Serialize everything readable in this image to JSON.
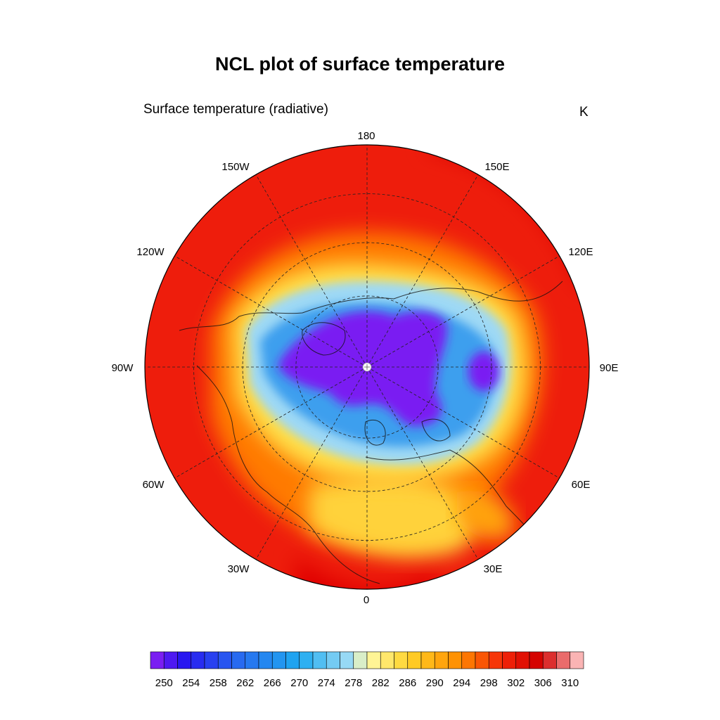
{
  "title": "NCL plot of surface temperature",
  "left_subtitle": "Surface temperature (radiative)",
  "right_subtitle": "K",
  "longitude_labels": {
    "lon_180": "180",
    "lon_150e": "150E",
    "lon_120e": "120E",
    "lon_90e": "90E",
    "lon_60e": "60E",
    "lon_30e": "30E",
    "lon_0": "0",
    "lon_30w": "30W",
    "lon_60w": "60W",
    "lon_90w": "90W",
    "lon_120w": "120W",
    "lon_150w": "150W"
  },
  "colorbar": {
    "min": 248,
    "max": 312,
    "interval": 2,
    "tick_labels": [
      "250",
      "254",
      "258",
      "262",
      "266",
      "270",
      "274",
      "278",
      "282",
      "286",
      "290",
      "294",
      "298",
      "302",
      "306",
      "310"
    ]
  },
  "chart_data": {
    "type": "heatmap",
    "projection": "polar-stereographic-north",
    "variable": "surface temperature",
    "units": "K",
    "grid": true,
    "legend_placement": "bottom",
    "regions_K": {
      "north_pole_and_arctic_ocean": 250,
      "greenland_interior": 250,
      "central_siberia_cold_core": 250,
      "arctic_margin_ice": 262,
      "subarctic_land_edge": 276,
      "mid_latitudes": 290,
      "tropics_outer_edge": 301,
      "sahara_arabia": 283
    }
  }
}
